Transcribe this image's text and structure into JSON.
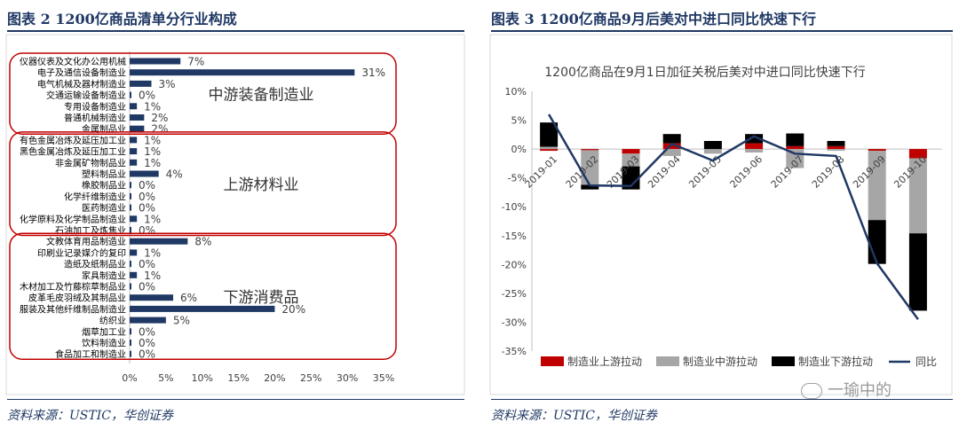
{
  "figures": [
    {
      "caption": "图表 2 1200亿商品清单分行业构成",
      "source": "资料来源：USTIC，华创证券",
      "chart_data": {
        "type": "bar",
        "orientation": "horizontal",
        "categories": [
          "仪器仪表及文化办公用机械",
          "电子及通信设备制造业",
          "电气机械及器材制造业",
          "交通运输设备制造业",
          "专用设备制造业",
          "普通机械制造业",
          "金属制品业",
          "有色金属冶炼及延压加工业",
          "黑色金属冶炼及延压加工业",
          "非金属矿物制品业",
          "塑料制品业",
          "橡胶制品业",
          "化学纤维制造业",
          "医药制造业",
          "化学原料及化学制品制造业",
          "石油加工及炼焦业",
          "文教体育用品制造业",
          "印刷业记录媒介的复印",
          "造纸及纸制品业",
          "家具制造业",
          "木材加工及竹藤棕草制品业",
          "皮革毛皮羽绒及其制品业",
          "服装及其他纤维制品制造业",
          "纺织业",
          "烟草加工业",
          "饮料制造业",
          "食品加工和制造业"
        ],
        "values": [
          7,
          31,
          3,
          0,
          1,
          2,
          2,
          1,
          1,
          1,
          4,
          0,
          0,
          0,
          1,
          0,
          8,
          1,
          0,
          1,
          0,
          6,
          20,
          5,
          0,
          0,
          0
        ],
        "value_labels": [
          "7%",
          "31%",
          "3%",
          "0%",
          "1%",
          "2%",
          "2%",
          "1%",
          "1%",
          "1%",
          "4%",
          "0%",
          "0%",
          "0%",
          "1%",
          "0%",
          "8%",
          "1%",
          "0%",
          "1%",
          "0%",
          "6%",
          "20%",
          "5%",
          "0%",
          "0%",
          "0%"
        ],
        "xlim": [
          0,
          35
        ],
        "x_ticks": [
          "0%",
          "5%",
          "10%",
          "15%",
          "20%",
          "25%",
          "30%",
          "35%"
        ],
        "groups": [
          {
            "label": "中游装备制造业",
            "start": 0,
            "end": 6
          },
          {
            "label": "上游材料业",
            "start": 7,
            "end": 15
          },
          {
            "label": "下游消费品",
            "start": 16,
            "end": 26
          }
        ],
        "bar_color": "#1f3864",
        "group_box_color": "#c00000"
      }
    },
    {
      "caption": "图表 3 1200亿商品9月后美对中进口同比快速下行",
      "source": "资料来源：USTIC，华创证券",
      "chart_data": {
        "type": "bar",
        "stacked": true,
        "title": "1200亿商品在9月1日加征关税后美对中进口同比快速下行",
        "categories": [
          "2019-01",
          "2019-02",
          "2019-03",
          "2019-04",
          "2019-05",
          "2019-06",
          "2019-07",
          "2019-08",
          "2019-09",
          "2019-10"
        ],
        "series": [
          {
            "name": "制造业上游拉动",
            "color": "#c00000",
            "values": [
              -0.3,
              -0.2,
              -0.8,
              1.0,
              0.0,
              1.0,
              0.5,
              0.5,
              -0.3,
              -1.6
            ]
          },
          {
            "name": "制造业中游拉动",
            "color": "#a6a6a6",
            "values": [
              0.4,
              -6.0,
              -2.2,
              -1.2,
              -0.8,
              -0.6,
              -3.3,
              -0.3,
              -12.0,
              -13.0
            ]
          },
          {
            "name": "制造业下游拉动",
            "color": "#000000",
            "values": [
              4.2,
              -0.8,
              -4.0,
              1.6,
              1.4,
              1.6,
              2.2,
              0.9,
              -7.6,
              -13.4
            ]
          }
        ],
        "line": {
          "name": "同比",
          "color": "#1f3864",
          "values": [
            6.0,
            -6.3,
            -6.4,
            0.9,
            -2.0,
            2.2,
            -0.8,
            -1.2,
            -19.8,
            -29.5
          ]
        },
        "ylim": [
          -35,
          10
        ],
        "y_ticks": [
          "-35%",
          "-30%",
          "-25%",
          "-20%",
          "-15%",
          "-10%",
          "-5%",
          "0%",
          "5%",
          "10%"
        ],
        "legend_position": "bottom"
      },
      "watermark": "一瑜中的"
    }
  ]
}
